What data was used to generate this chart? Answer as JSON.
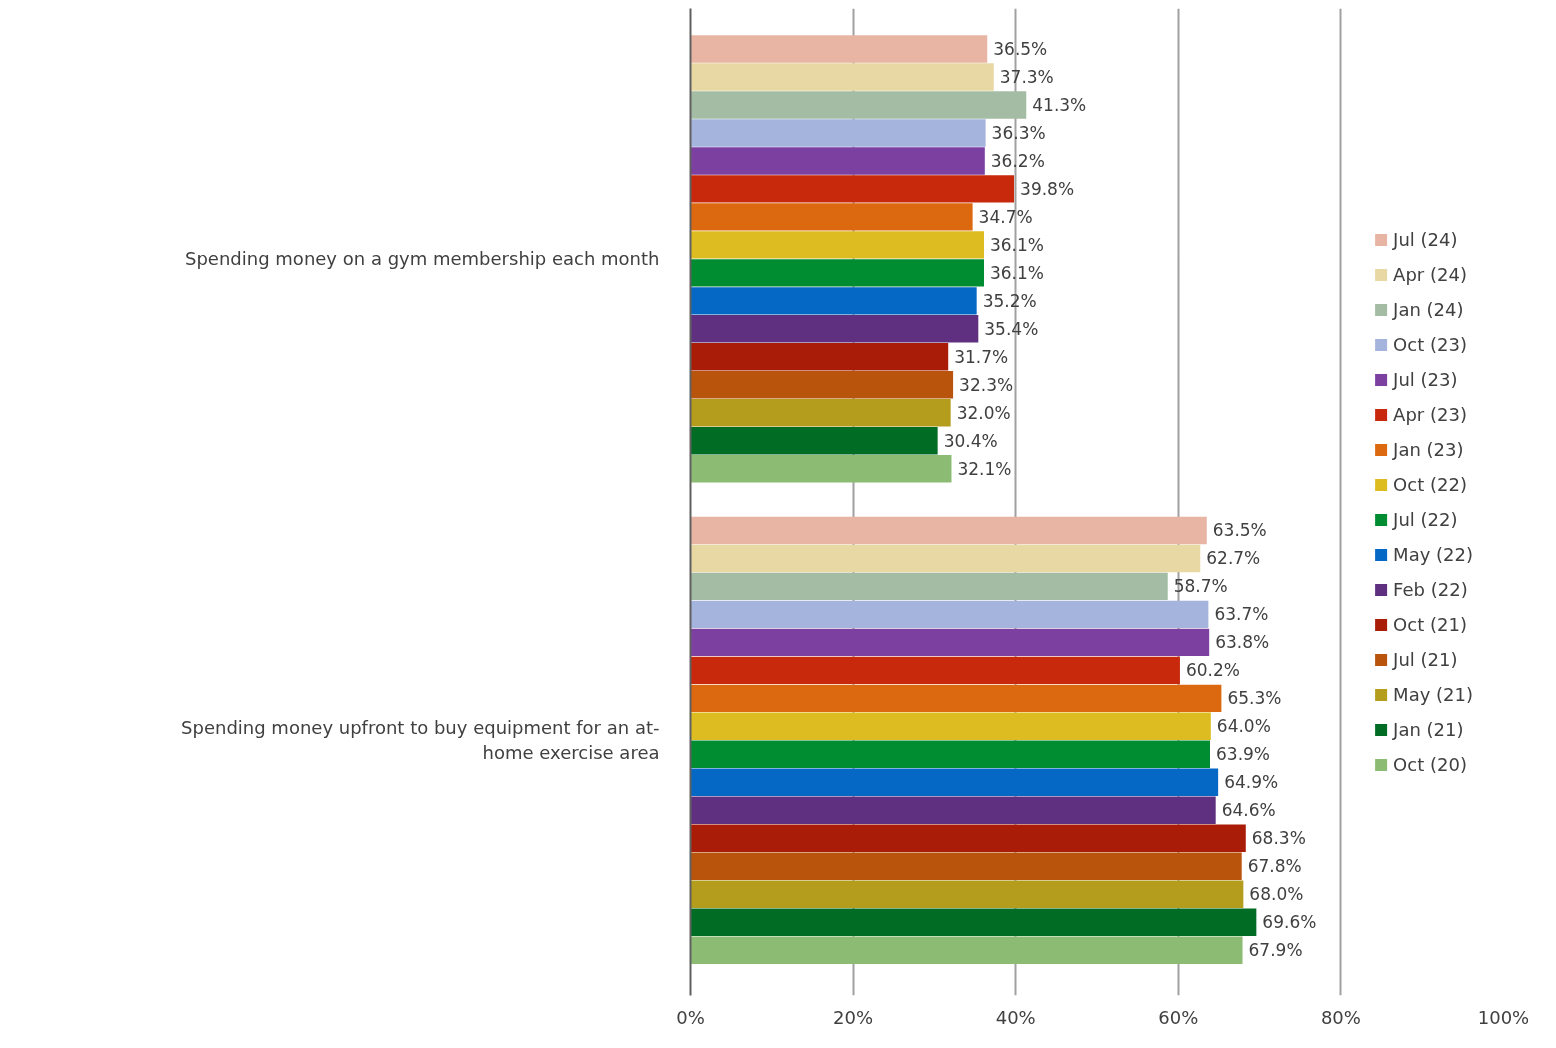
{
  "chart_data": {
    "type": "bar",
    "orientation": "horizontal",
    "categories": [
      "Spending money on a gym membership each month",
      "Spending money upfront to buy equipment for an at-home exercise area"
    ],
    "series": [
      {
        "name": "Jul (24)",
        "color": "#e8b4a4",
        "values": [
          36.5,
          63.5
        ],
        "value_labels": [
          "36.5%",
          "63.5%"
        ]
      },
      {
        "name": "Apr (24)",
        "color": "#e8d8a4",
        "values": [
          37.3,
          62.7
        ],
        "value_labels": [
          "37.3%",
          "62.7%"
        ]
      },
      {
        "name": "Jan (24)",
        "color": "#a4bca4",
        "values": [
          41.3,
          58.7
        ],
        "value_labels": [
          "41.3%",
          "58.7%"
        ]
      },
      {
        "name": "Oct (23)",
        "color": "#a4b4dc",
        "values": [
          36.3,
          63.7
        ],
        "value_labels": [
          "36.3%",
          "63.7%"
        ]
      },
      {
        "name": "Jul (23)",
        "color": "#7b40a0",
        "values": [
          36.2,
          63.8
        ],
        "value_labels": [
          "36.2%",
          "63.8%"
        ]
      },
      {
        "name": "Apr (23)",
        "color": "#c8280c",
        "values": [
          39.8,
          60.2
        ],
        "value_labels": [
          "39.8%",
          "60.2%"
        ]
      },
      {
        "name": "Jan (23)",
        "color": "#dc6810",
        "values": [
          34.7,
          65.3
        ],
        "value_labels": [
          "34.7%",
          "65.3%"
        ]
      },
      {
        "name": "Oct (22)",
        "color": "#dcbc20",
        "values": [
          36.1,
          64.0
        ],
        "value_labels": [
          "36.1%",
          "64.0%"
        ]
      },
      {
        "name": "Jul (22)",
        "color": "#008c30",
        "values": [
          36.1,
          63.9
        ],
        "value_labels": [
          "36.1%",
          "63.9%"
        ]
      },
      {
        "name": "May (22)",
        "color": "#0468c4",
        "values": [
          35.2,
          64.9
        ],
        "value_labels": [
          "35.2%",
          "64.9%"
        ]
      },
      {
        "name": "Feb (22)",
        "color": "#603080",
        "values": [
          35.4,
          64.6
        ],
        "value_labels": [
          "35.4%",
          "64.6%"
        ]
      },
      {
        "name": "Oct (21)",
        "color": "#a81c08",
        "values": [
          31.7,
          68.3
        ],
        "value_labels": [
          "31.7%",
          "68.3%"
        ]
      },
      {
        "name": "Jul (21)",
        "color": "#b8540c",
        "values": [
          32.3,
          67.8
        ],
        "value_labels": [
          "32.3%",
          "67.8%"
        ]
      },
      {
        "name": "May (21)",
        "color": "#b49c1c",
        "values": [
          32.0,
          68.0
        ],
        "value_labels": [
          "32.0%",
          "68.0%"
        ]
      },
      {
        "name": "Jan (21)",
        "color": "#006c24",
        "values": [
          30.4,
          69.6
        ],
        "value_labels": [
          "30.4%",
          "69.6%"
        ]
      },
      {
        "name": "Oct (20)",
        "color": "#8cbc74",
        "values": [
          32.1,
          67.9
        ],
        "value_labels": [
          "32.1%",
          "67.9%"
        ]
      }
    ],
    "xlim": [
      0,
      100
    ],
    "xticks": [
      {
        "value": 0,
        "label": "0%"
      },
      {
        "value": 20,
        "label": "20%"
      },
      {
        "value": 40,
        "label": "40%"
      },
      {
        "value": 60,
        "label": "60%"
      },
      {
        "value": 80,
        "label": "80%"
      },
      {
        "value": 100,
        "label": "100%"
      }
    ],
    "grid": "x",
    "legend": "right"
  }
}
